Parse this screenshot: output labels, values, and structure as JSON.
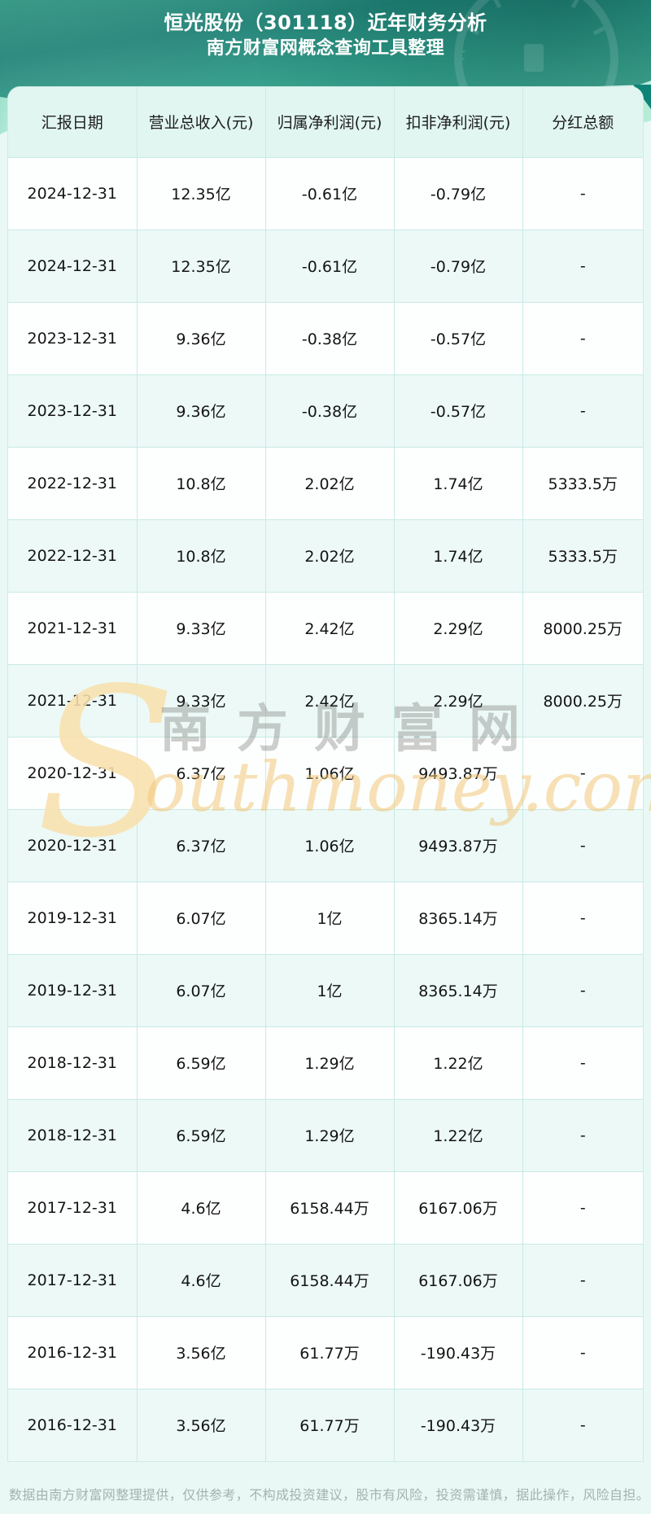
{
  "header": {
    "title": "恒光股份（301118）近年财务分析",
    "subtitle": "南方财富网概念查询工具整理"
  },
  "watermark": {
    "initial": "S",
    "rest": "outhmoney.com",
    "cn": "南方财富网"
  },
  "footer": {
    "disclaimer": "数据由南方财富网整理提供，仅供参考，不构成投资建议，股市有风险，投资需谨慎，据此操作，风险自担。"
  },
  "colors": {
    "header_teal_dark": "#1f8175",
    "header_teal_light": "#4cb79f",
    "page_bg": "#e9f8f4",
    "table_header_bg": "#e1f6f1",
    "row_bg": "#fdfffe",
    "row_alt_bg": "#ecf9f7",
    "table_border": "#c9eae4",
    "text": "#141414",
    "footer_text": "#a5b2af",
    "watermark_orange": "#f3c67a",
    "watermark_gray": "#5f5d58"
  },
  "chart_data": {
    "type": "table",
    "title": "恒光股份（301118）近年财务分析",
    "subtitle": "南方财富网概念查询工具整理",
    "columns": [
      "汇报日期",
      "营业总收入(元)",
      "归属净利润(元)",
      "扣非净利润(元)",
      "分红总额"
    ],
    "rows": [
      [
        "2024-12-31",
        "12.35亿",
        "-0.61亿",
        "-0.79亿",
        "-"
      ],
      [
        "2024-12-31",
        "12.35亿",
        "-0.61亿",
        "-0.79亿",
        "-"
      ],
      [
        "2023-12-31",
        "9.36亿",
        "-0.38亿",
        "-0.57亿",
        "-"
      ],
      [
        "2023-12-31",
        "9.36亿",
        "-0.38亿",
        "-0.57亿",
        "-"
      ],
      [
        "2022-12-31",
        "10.8亿",
        "2.02亿",
        "1.74亿",
        "5333.5万"
      ],
      [
        "2022-12-31",
        "10.8亿",
        "2.02亿",
        "1.74亿",
        "5333.5万"
      ],
      [
        "2021-12-31",
        "9.33亿",
        "2.42亿",
        "2.29亿",
        "8000.25万"
      ],
      [
        "2021-12-31",
        "9.33亿",
        "2.42亿",
        "2.29亿",
        "8000.25万"
      ],
      [
        "2020-12-31",
        "6.37亿",
        "1.06亿",
        "9493.87万",
        "-"
      ],
      [
        "2020-12-31",
        "6.37亿",
        "1.06亿",
        "9493.87万",
        "-"
      ],
      [
        "2019-12-31",
        "6.07亿",
        "1亿",
        "8365.14万",
        "-"
      ],
      [
        "2019-12-31",
        "6.07亿",
        "1亿",
        "8365.14万",
        "-"
      ],
      [
        "2018-12-31",
        "6.59亿",
        "1.29亿",
        "1.22亿",
        "-"
      ],
      [
        "2018-12-31",
        "6.59亿",
        "1.29亿",
        "1.22亿",
        "-"
      ],
      [
        "2017-12-31",
        "4.6亿",
        "6158.44万",
        "6167.06万",
        "-"
      ],
      [
        "2017-12-31",
        "4.6亿",
        "6158.44万",
        "6167.06万",
        "-"
      ],
      [
        "2016-12-31",
        "3.56亿",
        "61.77万",
        "-190.43万",
        "-"
      ],
      [
        "2016-12-31",
        "3.56亿",
        "61.77万",
        "-190.43万",
        "-"
      ]
    ]
  }
}
